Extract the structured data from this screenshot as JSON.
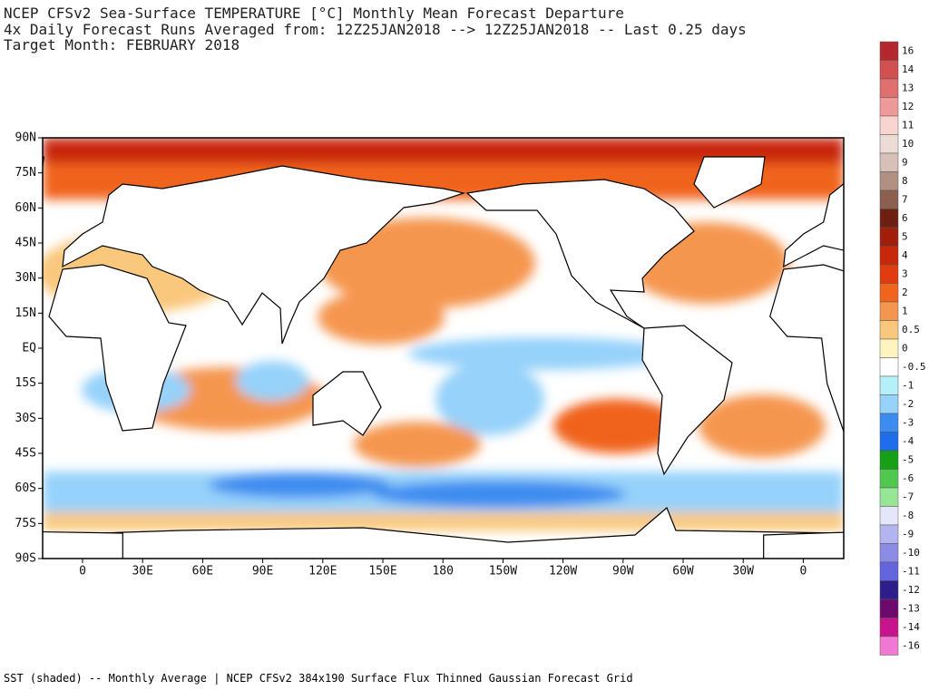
{
  "header": {
    "lines": [
      "NCEP CFSv2 Sea-Surface TEMPERATURE [°C] Monthly Mean Forecast Departure",
      "4x Daily Forecast Runs Averaged from: 12Z25JAN2018 --> 12Z25JAN2018 -- Last 0.25 days",
      "Target Month: FEBRUARY 2018"
    ]
  },
  "map": {
    "lat_labels": [
      "90N",
      "75N",
      "60N",
      "45N",
      "30N",
      "15N",
      "EQ",
      "15S",
      "30S",
      "45S",
      "60S",
      "75S",
      "90S"
    ],
    "lon_labels": [
      "0",
      "30E",
      "60E",
      "90E",
      "120E",
      "150E",
      "180",
      "150W",
      "120W",
      "90W",
      "60W",
      "30W",
      "0"
    ]
  },
  "colorbar": {
    "levels": [
      {
        "value": 16,
        "color": "#b4282d"
      },
      {
        "value": 14,
        "color": "#d2504f"
      },
      {
        "value": 13,
        "color": "#e07070"
      },
      {
        "value": 12,
        "color": "#ee9a9a"
      },
      {
        "value": 11,
        "color": "#f8d4d0"
      },
      {
        "value": 10,
        "color": "#ecdcd6"
      },
      {
        "value": 9,
        "color": "#d6c0b8"
      },
      {
        "value": 8,
        "color": "#b09080"
      },
      {
        "value": 7,
        "color": "#8c6050"
      },
      {
        "value": 6,
        "color": "#6e2010"
      },
      {
        "value": 5,
        "color": "#a01e0a"
      },
      {
        "value": 4,
        "color": "#c8280a"
      },
      {
        "value": 3,
        "color": "#e03c0f"
      },
      {
        "value": 2,
        "color": "#f0641e"
      },
      {
        "value": 1,
        "color": "#f59650"
      },
      {
        "value": 0.5,
        "color": "#fac87d"
      },
      {
        "value": 0,
        "color": "#fff4c0"
      },
      {
        "value": -0.5,
        "color": "#ffffff"
      },
      {
        "value": -1,
        "color": "#b4f0fa"
      },
      {
        "value": -2,
        "color": "#96d2fa"
      },
      {
        "value": -3,
        "color": "#3c8cf0"
      },
      {
        "value": -4,
        "color": "#1e6eeb"
      },
      {
        "value": -5,
        "color": "#15a015"
      },
      {
        "value": -6,
        "color": "#50c850"
      },
      {
        "value": -7,
        "color": "#96e696"
      },
      {
        "value": -8,
        "color": "#e6e6fa"
      },
      {
        "value": -9,
        "color": "#b4b4f0"
      },
      {
        "value": -10,
        "color": "#8c8ce6"
      },
      {
        "value": -11,
        "color": "#6464dc"
      },
      {
        "value": -12,
        "color": "#2d1e8c"
      },
      {
        "value": -13,
        "color": "#6e0a6e"
      },
      {
        "value": -14,
        "color": "#c8148c"
      },
      {
        "value": -16,
        "color": "#f078d2"
      }
    ]
  },
  "footer": "SST (shaded) -- Monthly Average | NCEP CFSv2 384x190 Surface Flux Thinned Gaussian Forecast Grid"
}
